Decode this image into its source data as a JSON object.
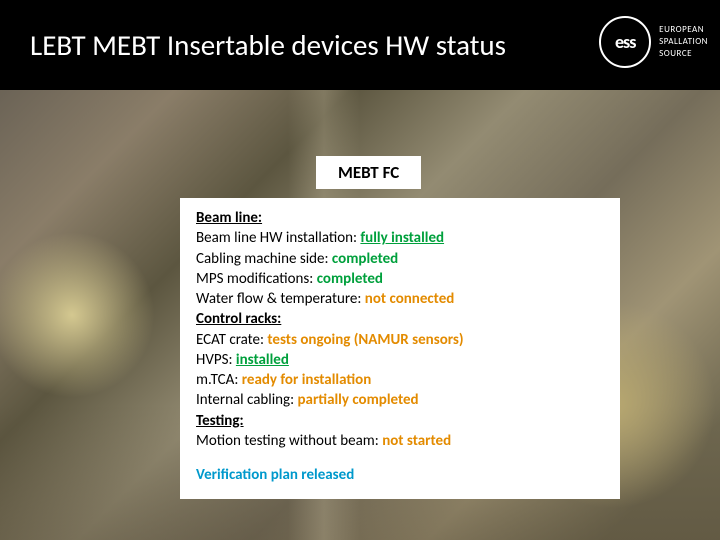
{
  "header": {
    "title": "LEBT MEBT Insertable devices HW status",
    "logo_abbrev": "ess",
    "org_line1": "EUROPEAN",
    "org_line2": "SPALLATION",
    "org_line3": "SOURCE"
  },
  "label": "MEBT FC",
  "status": {
    "beam_line_header": "Beam line:",
    "lines": [
      {
        "label": "Beam line HW installation: ",
        "value": "fully installed",
        "cls": "good underline"
      },
      {
        "label": "Cabling machine side: ",
        "value": "completed",
        "cls": "good"
      },
      {
        "label": "MPS modifications: ",
        "value": "completed",
        "cls": "good"
      },
      {
        "label": "Water flow & temperature: ",
        "value": "not connected",
        "cls": "warn"
      }
    ],
    "control_header": "Control racks:",
    "control_lines": [
      {
        "label": "ECAT crate: ",
        "value": "tests ongoing (NAMUR sensors)",
        "cls": "warn"
      },
      {
        "label": "HVPS: ",
        "value": "installed",
        "cls": "good underline"
      },
      {
        "label": "m.TCA: ",
        "value": "ready for installation",
        "cls": "warn"
      },
      {
        "label": "Internal cabling: ",
        "value": "partially completed",
        "cls": "warn"
      }
    ],
    "testing_header": "Testing:",
    "testing_lines": [
      {
        "label": "Motion testing without beam: ",
        "value": "not started",
        "cls": "warn"
      }
    ],
    "verification": "Verification plan released"
  },
  "colors": {
    "good": "#00a03c",
    "warn": "#e38b00",
    "link": "#0099cc",
    "header_bg": "#000000",
    "box_bg": "#ffffff"
  }
}
